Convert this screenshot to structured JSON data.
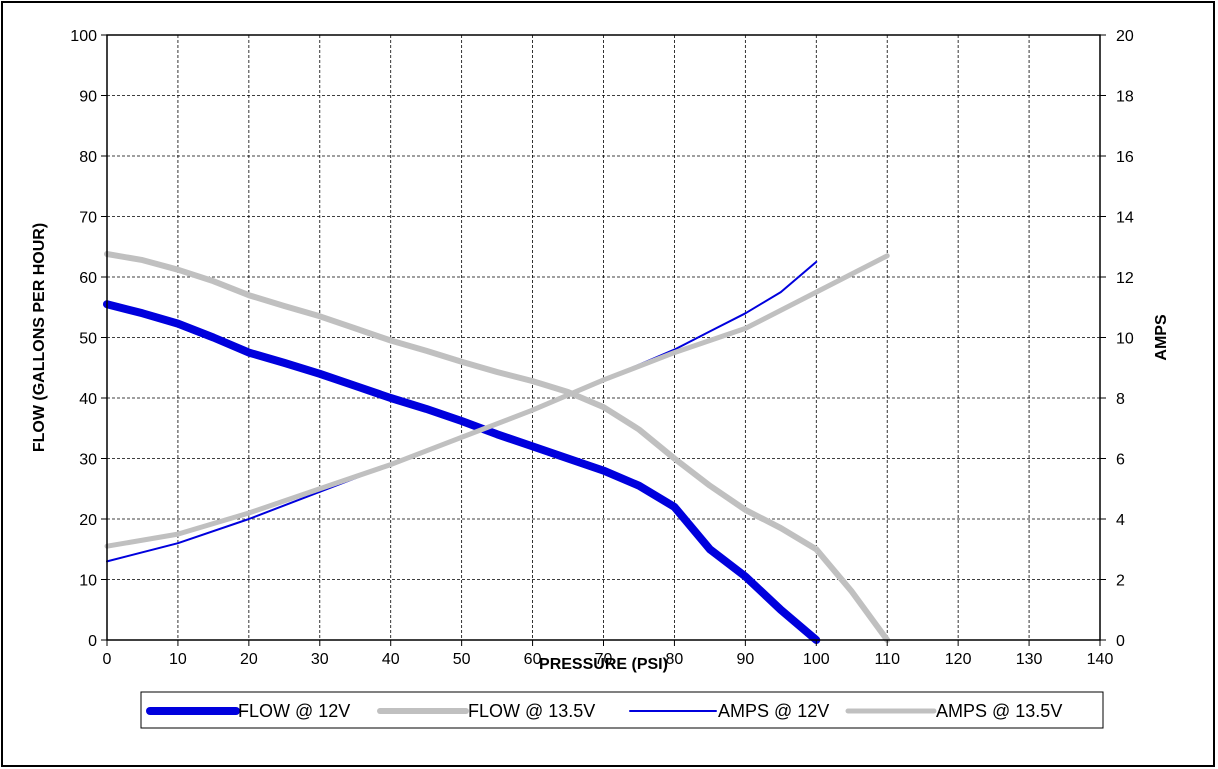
{
  "chart_data": {
    "type": "line",
    "title": "",
    "xlabel": "PRESSURE (PSI)",
    "ylabel": "FLOW (GALLONS PER HOUR)",
    "y2label": "AMPS",
    "xlim": [
      0,
      140
    ],
    "ylim": [
      0,
      100
    ],
    "y2lim": [
      0,
      20
    ],
    "x_ticks": [
      "0",
      "10",
      "20",
      "30",
      "40",
      "50",
      "60",
      "70",
      "80",
      "90",
      "100",
      "110",
      "120",
      "130",
      "140"
    ],
    "y_ticks": [
      "0",
      "10",
      "20",
      "30",
      "40",
      "50",
      "60",
      "70",
      "80",
      "90",
      "100"
    ],
    "y2_ticks": [
      "0",
      "2",
      "4",
      "6",
      "8",
      "10",
      "12",
      "14",
      "16",
      "18",
      "20"
    ],
    "grid": true,
    "legend_position": "bottom",
    "series": [
      {
        "name": "FLOW @ 12V",
        "axis": "left",
        "color": "#0000dd",
        "points": [
          [
            0,
            55.5
          ],
          [
            5,
            54
          ],
          [
            10,
            52.3
          ],
          [
            15,
            50
          ],
          [
            20,
            47.5
          ],
          [
            25,
            45.8
          ],
          [
            30,
            44
          ],
          [
            35,
            42
          ],
          [
            40,
            40
          ],
          [
            45,
            38.2
          ],
          [
            50,
            36.2
          ],
          [
            55,
            34
          ],
          [
            60,
            32
          ],
          [
            65,
            30
          ],
          [
            70,
            28
          ],
          [
            75,
            25.5
          ],
          [
            80,
            22
          ],
          [
            85,
            15
          ],
          [
            90,
            10.5
          ],
          [
            95,
            5
          ],
          [
            100,
            0
          ]
        ]
      },
      {
        "name": "FLOW @ 13.5V",
        "axis": "left",
        "color": "#c0c0c0",
        "points": [
          [
            0,
            63.8
          ],
          [
            5,
            62.8
          ],
          [
            10,
            61.2
          ],
          [
            15,
            59.3
          ],
          [
            20,
            57
          ],
          [
            25,
            55.2
          ],
          [
            30,
            53.5
          ],
          [
            35,
            51.5
          ],
          [
            40,
            49.5
          ],
          [
            45,
            47.8
          ],
          [
            50,
            46
          ],
          [
            55,
            44.3
          ],
          [
            60,
            42.8
          ],
          [
            65,
            41
          ],
          [
            70,
            38.5
          ],
          [
            75,
            34.8
          ],
          [
            80,
            30
          ],
          [
            85,
            25.5
          ],
          [
            90,
            21.5
          ],
          [
            95,
            18.5
          ],
          [
            100,
            15
          ],
          [
            105,
            8
          ],
          [
            110,
            0
          ]
        ]
      },
      {
        "name": "AMPS @ 12V",
        "axis": "right",
        "color": "#0000dd",
        "points": [
          [
            0,
            2.6
          ],
          [
            10,
            3.2
          ],
          [
            20,
            4
          ],
          [
            30,
            4.9
          ],
          [
            40,
            5.8
          ],
          [
            50,
            6.7
          ],
          [
            60,
            7.6
          ],
          [
            70,
            8.6
          ],
          [
            80,
            9.6
          ],
          [
            85,
            10.2
          ],
          [
            90,
            10.8
          ],
          [
            95,
            11.5
          ],
          [
            100,
            12.5
          ]
        ]
      },
      {
        "name": "AMPS @ 13.5V",
        "axis": "right",
        "color": "#c0c0c0",
        "points": [
          [
            0,
            3.1
          ],
          [
            10,
            3.5
          ],
          [
            20,
            4.2
          ],
          [
            30,
            5
          ],
          [
            40,
            5.8
          ],
          [
            50,
            6.7
          ],
          [
            60,
            7.6
          ],
          [
            70,
            8.6
          ],
          [
            80,
            9.5
          ],
          [
            90,
            10.3
          ],
          [
            100,
            11.5
          ],
          [
            110,
            12.7
          ]
        ]
      }
    ]
  }
}
